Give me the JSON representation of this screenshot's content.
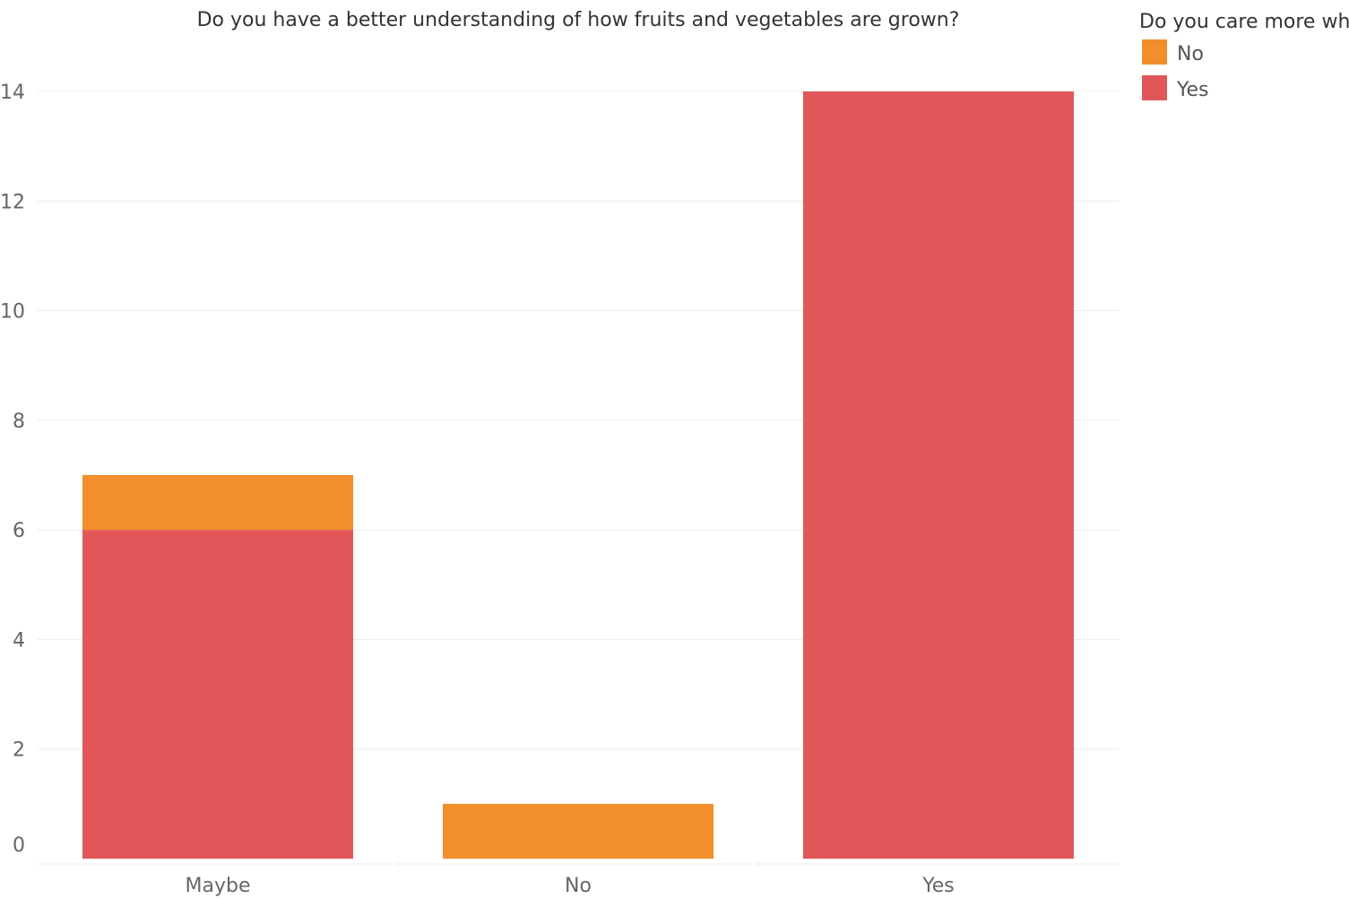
{
  "chart_data": {
    "type": "bar",
    "stacked": true,
    "title": "Do you have a better understanding of how fruits and vegetables are grown?",
    "xlabel": "",
    "ylabel": "",
    "categories": [
      "Maybe",
      "No",
      "Yes"
    ],
    "series": [
      {
        "name": "Yes",
        "values": [
          6,
          0,
          14
        ],
        "color": "#e15759"
      },
      {
        "name": "No",
        "values": [
          1,
          1,
          0
        ],
        "color": "#f28e2b"
      }
    ],
    "ylim": [
      0,
      14
    ],
    "y_ticks": [
      "0",
      "2",
      "4",
      "6",
      "8",
      "10",
      "12",
      "14"
    ],
    "grid": true,
    "legend": {
      "title": "Do you care more wh",
      "placement": "top-right",
      "items": [
        {
          "label": "No",
          "color": "#f28e2b"
        },
        {
          "label": "Yes",
          "color": "#e15759"
        }
      ]
    }
  }
}
